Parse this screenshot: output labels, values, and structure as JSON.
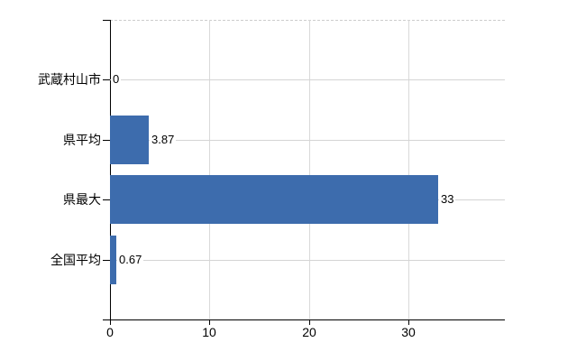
{
  "chart_data": {
    "type": "bar",
    "orientation": "horizontal",
    "title": "",
    "xlabel": "",
    "ylabel": "",
    "categories": [
      "武蔵村山市",
      "県平均",
      "県最大",
      "全国平均"
    ],
    "values": [
      0,
      3.87,
      33,
      0.67
    ],
    "value_labels": [
      "0",
      "3.87",
      "33",
      "0.67"
    ],
    "xticks": [
      0,
      10,
      20,
      30
    ],
    "xtick_labels": [
      "0",
      "10",
      "20",
      "30"
    ],
    "xlim": [
      0,
      39.7
    ],
    "grid": true,
    "legend": "none",
    "colors": {
      "bar": "#3d6cad",
      "vertical_gridline": "#d9d9d9",
      "row_line": "#d4d4d4",
      "top_dashed_line": "#cccccc",
      "axis": "#000000",
      "text": "#000000",
      "background": "#ffffff"
    }
  }
}
